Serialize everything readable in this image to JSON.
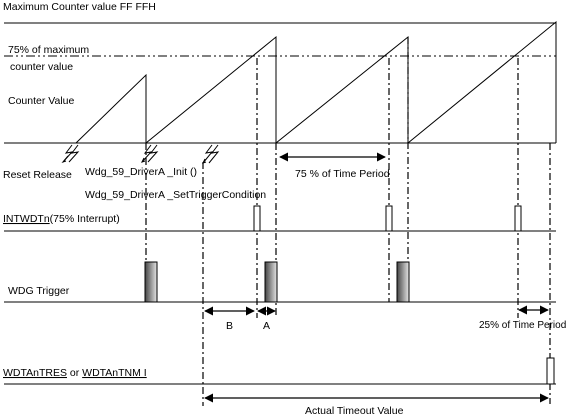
{
  "labels": {
    "max_counter": "Maximum Counter value FF FFH",
    "pct75_line1": "75% of maximum",
    "pct75_line2": "counter value",
    "counter_value": "Counter Value",
    "reset_release": "Reset Release",
    "driver_init": "Wdg_59_DriverA _Init ()",
    "set_trigger": "Wdg_59_DriverA _SetTriggerCondition",
    "intwdt_prefix": "INTWDTn",
    "intwdt_suffix": "(75%  Interrupt)",
    "wdg_trigger": "WDG Trigger",
    "b_label": "B",
    "a_label": "A",
    "pct25_period": "25% of Time  Period",
    "pct75_period": "75 % of Time Period",
    "wdtanres_a": "WDTAnTRES",
    "wdtanres_or": " or ",
    "wdtanres_b": "WDTAnTNM I",
    "actual_timeout": "Actual Timeout Value"
  },
  "colors": {
    "pulse_gradient_dark": "#444444",
    "pulse_gradient_light": "#e6e6e6",
    "spellcheck_squiggle": "#d00000"
  }
}
